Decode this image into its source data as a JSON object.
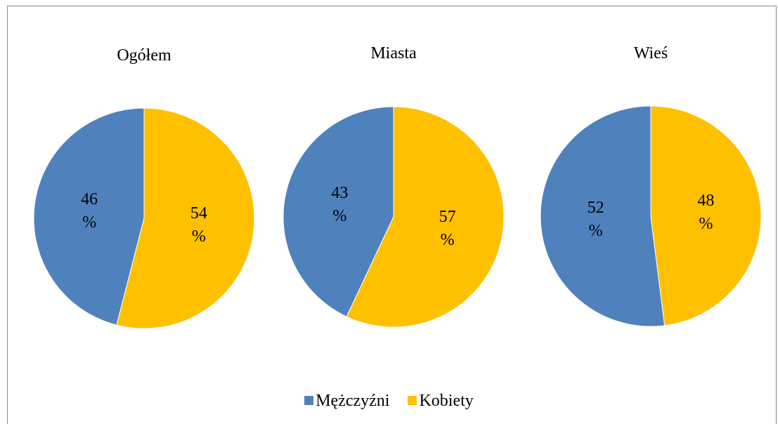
{
  "chart_data": [
    {
      "type": "pie",
      "title": "Ogółem",
      "categories": [
        "Mężczyźni",
        "Kobiety"
      ],
      "values": [
        46,
        54
      ],
      "value_labels": [
        "46 %",
        "54 %"
      ],
      "colors": [
        "#4f81bd",
        "#ffc000"
      ]
    },
    {
      "type": "pie",
      "title": "Miasta",
      "categories": [
        "Mężczyźni",
        "Kobiety"
      ],
      "values": [
        43,
        57
      ],
      "value_labels": [
        "43 %",
        "57 %"
      ],
      "colors": [
        "#4f81bd",
        "#ffc000"
      ]
    },
    {
      "type": "pie",
      "title": "Wieś",
      "categories": [
        "Mężczyźni",
        "Kobiety"
      ],
      "values": [
        52,
        48
      ],
      "value_labels": [
        "52 %",
        "48 %"
      ],
      "colors": [
        "#4f81bd",
        "#ffc000"
      ]
    }
  ]
}
